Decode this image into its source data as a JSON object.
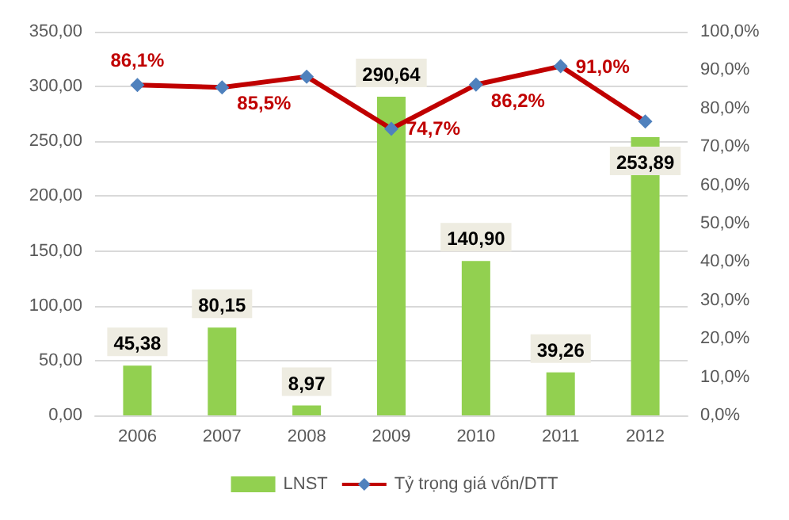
{
  "chart_data": {
    "type": "bar",
    "categories": [
      "2006",
      "2007",
      "2008",
      "2009",
      "2010",
      "2011",
      "2012"
    ],
    "series": [
      {
        "name": "LNST",
        "color": "#92d050",
        "values": [
          45.38,
          80.15,
          8.97,
          290.64,
          140.9,
          39.26,
          253.89
        ],
        "value_labels": [
          "45,38",
          "80,15",
          "8,97",
          "290,64",
          "140,90",
          "39,26",
          "253,89"
        ]
      },
      {
        "name": "Tỷ trọng giá vốn/DTT",
        "type": "line",
        "axis": "y2",
        "color": "#c00000",
        "marker": "diamond",
        "values": [
          86.1,
          85.5,
          88.3,
          74.7,
          86.2,
          91.0,
          76.6
        ],
        "value_labels": [
          "86,1%",
          "85,5%",
          null,
          "74,7%",
          "86,2%",
          "91,0%",
          null
        ]
      }
    ],
    "ylim": [
      0,
      350
    ],
    "yticks": [
      {
        "value": 0,
        "label": "0,00"
      },
      {
        "value": 50,
        "label": "50,00"
      },
      {
        "value": 100,
        "label": "100,00"
      },
      {
        "value": 150,
        "label": "150,00"
      },
      {
        "value": 200,
        "label": "200,00"
      },
      {
        "value": 250,
        "label": "250,00"
      },
      {
        "value": 300,
        "label": "300,00"
      },
      {
        "value": 350,
        "label": "350,00"
      }
    ],
    "y2lim": [
      0,
      100
    ],
    "y2ticks": [
      {
        "value": 0,
        "label": "0,0%"
      },
      {
        "value": 10,
        "label": "10,0%"
      },
      {
        "value": 20,
        "label": "20,0%"
      },
      {
        "value": 30,
        "label": "30,0%"
      },
      {
        "value": 40,
        "label": "40,0%"
      },
      {
        "value": 50,
        "label": "50,0%"
      },
      {
        "value": 60,
        "label": "60,0%"
      },
      {
        "value": 70,
        "label": "70,0%"
      },
      {
        "value": 80,
        "label": "80,0%"
      },
      {
        "value": 90,
        "label": "90,0%"
      },
      {
        "value": 100,
        "label": "100,0%"
      }
    ],
    "grid": "y",
    "legend": "bottom"
  }
}
